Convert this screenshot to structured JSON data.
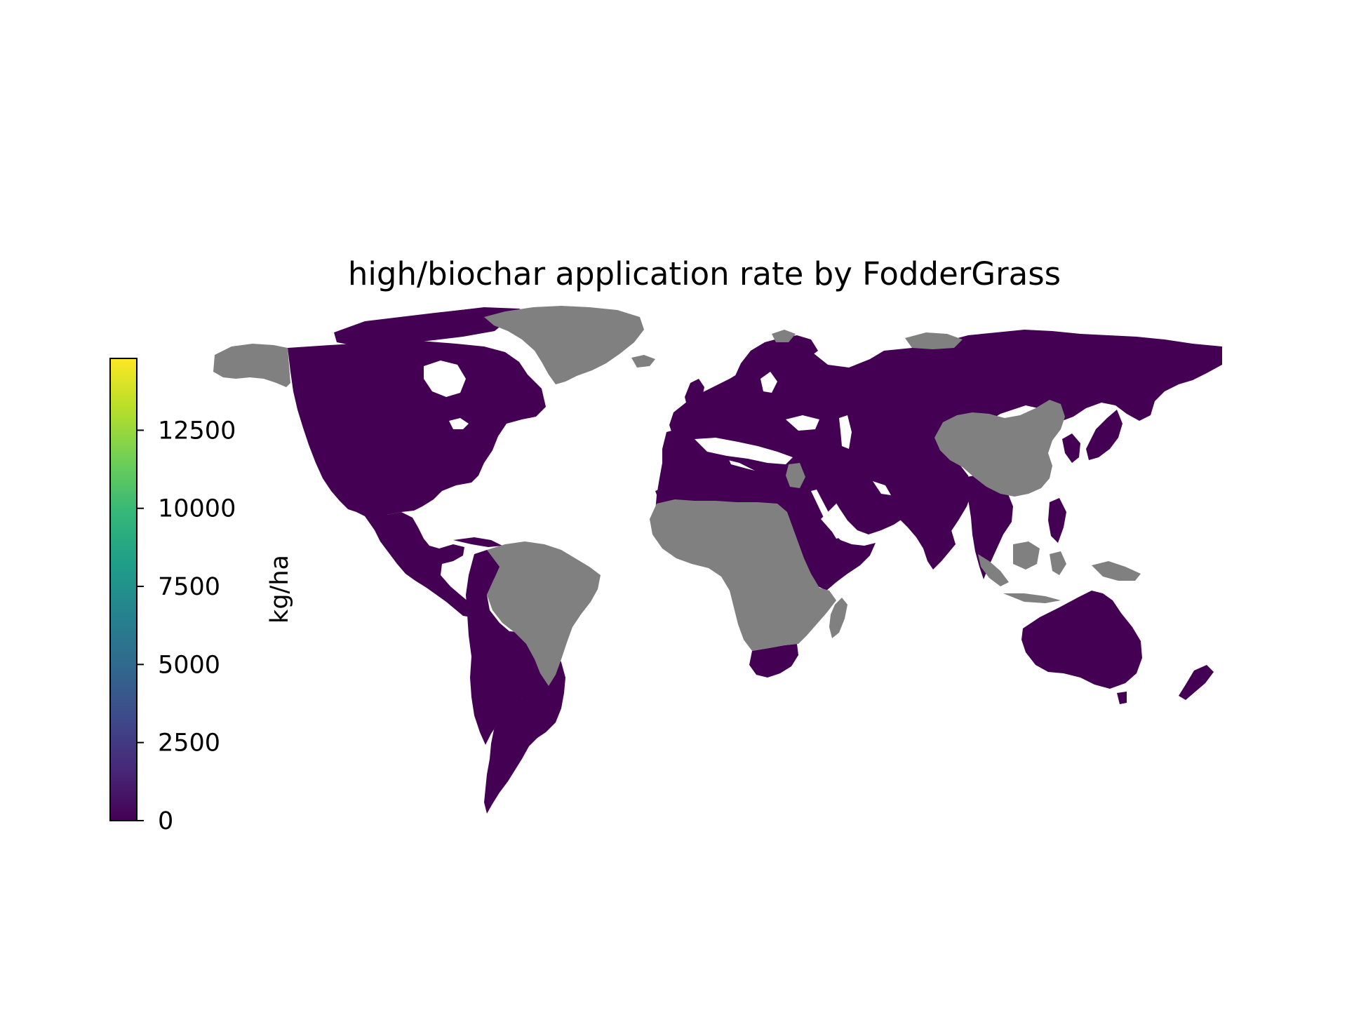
{
  "title": "high/biochar application rate by FodderGrass",
  "colorbar": {
    "label": "kg/ha",
    "ticks": [
      "0",
      "2500",
      "5000",
      "7500",
      "10000",
      "12500"
    ],
    "tick_values": [
      0,
      2500,
      5000,
      7500,
      10000,
      12500
    ],
    "range": [
      0,
      14800
    ],
    "colormap": "viridis",
    "stops": [
      "#440154",
      "#482878",
      "#3e4a89",
      "#31688e",
      "#26828e",
      "#1f9e89",
      "#35b779",
      "#6ece58",
      "#b5de2b",
      "#fde725"
    ]
  },
  "colors": {
    "data_region": "#440154",
    "no_data_region": "#808080",
    "background": "#ffffff"
  },
  "map_data": {
    "type": "choropleth",
    "projection": "plate-carree",
    "regions_with_data_value_kg_ha": 0,
    "regions_with_data": [
      "North America",
      "Central America",
      "Western South America",
      "Southern South America",
      "Europe",
      "Russia",
      "Central Asia",
      "Middle East",
      "North Africa",
      "Sudan",
      "Horn of Africa",
      "South Africa",
      "South Asia",
      "Southeast Asia mainland",
      "Japan",
      "Korea",
      "Philippines",
      "Australia",
      "New Zealand",
      "Canadian Arctic"
    ],
    "regions_without_data": [
      "Greenland",
      "Alaska",
      "Brazil",
      "Sub-Saharan Africa",
      "China",
      "Mongolia",
      "Indonesia",
      "Papua New Guinea",
      "Madagascar",
      "Svalbard",
      "Novaya Zemlya",
      "Iceland"
    ]
  }
}
